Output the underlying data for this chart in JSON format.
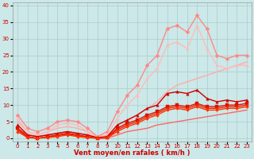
{
  "xlabel": "Vent moyen/en rafales ( km/h )",
  "xlim": [
    -0.5,
    23.5
  ],
  "ylim": [
    -1,
    41
  ],
  "yticks": [
    0,
    5,
    10,
    15,
    20,
    25,
    30,
    35,
    40
  ],
  "xticks": [
    0,
    1,
    2,
    3,
    4,
    5,
    6,
    7,
    8,
    9,
    10,
    11,
    12,
    13,
    14,
    15,
    16,
    17,
    18,
    19,
    20,
    21,
    22,
    23
  ],
  "background_color": "#cce8e8",
  "grid_color": "#aacccc",
  "series": [
    {
      "x": [
        0,
        1,
        2,
        3,
        4,
        5,
        6,
        7,
        8,
        9,
        10,
        11,
        12,
        13,
        14,
        15,
        16,
        17,
        18,
        19,
        20,
        21,
        22,
        23
      ],
      "y": [
        3,
        1,
        0.5,
        1,
        1.5,
        2,
        1.5,
        1,
        0,
        0,
        1,
        2,
        2.5,
        3,
        4,
        4.5,
        5,
        5.5,
        6,
        6.5,
        7,
        7.5,
        8,
        8.5
      ],
      "color": "#ff6666",
      "marker": null,
      "lw": 1.0,
      "ms": 0
    },
    {
      "x": [
        0,
        1,
        2,
        3,
        4,
        5,
        6,
        7,
        8,
        9,
        10,
        11,
        12,
        13,
        14,
        15,
        16,
        17,
        18,
        19,
        20,
        21,
        22,
        23
      ],
      "y": [
        5,
        2,
        1,
        2,
        3,
        3.5,
        3,
        2,
        0.5,
        1,
        3,
        5,
        7,
        9,
        11,
        14,
        16,
        17,
        18,
        19,
        20,
        21,
        22,
        23
      ],
      "color": "#ffaaaa",
      "marker": null,
      "lw": 1.0,
      "ms": 0
    },
    {
      "x": [
        0,
        1,
        2,
        3,
        4,
        5,
        6,
        7,
        8,
        9,
        10,
        11,
        12,
        13,
        14,
        15,
        16,
        17,
        18,
        19,
        20,
        21,
        22,
        23
      ],
      "y": [
        7,
        3,
        2,
        3,
        5,
        5.5,
        5,
        3,
        0.5,
        2,
        8,
        13,
        16,
        22,
        25,
        33,
        34,
        32,
        37,
        33,
        25,
        24,
        25,
        25
      ],
      "color": "#ff8888",
      "marker": "D",
      "lw": 1.0,
      "ms": 2.5
    },
    {
      "x": [
        0,
        1,
        2,
        3,
        4,
        5,
        6,
        7,
        8,
        9,
        10,
        11,
        12,
        13,
        14,
        15,
        16,
        17,
        18,
        19,
        20,
        21,
        22,
        23
      ],
      "y": [
        6,
        2,
        1,
        2,
        4,
        4.5,
        4,
        2,
        0.3,
        1,
        6,
        10,
        13,
        18,
        21,
        28,
        29,
        27,
        34,
        27,
        22,
        21,
        22,
        22
      ],
      "color": "#ffbbbb",
      "marker": "^",
      "lw": 1.0,
      "ms": 2.5
    },
    {
      "x": [
        0,
        1,
        2,
        3,
        4,
        5,
        6,
        7,
        8,
        9,
        10,
        11,
        12,
        13,
        14,
        15,
        16,
        17,
        18,
        19,
        20,
        21,
        22,
        23
      ],
      "y": [
        4,
        1,
        0.5,
        1,
        1.5,
        2,
        1.5,
        1,
        0.2,
        0.5,
        4,
        5.5,
        7,
        9,
        10,
        13.5,
        14,
        13.5,
        14.5,
        12,
        11,
        11.5,
        11,
        11.5
      ],
      "color": "#cc0000",
      "marker": "^",
      "lw": 1.0,
      "ms": 2.5
    },
    {
      "x": [
        0,
        1,
        2,
        3,
        4,
        5,
        6,
        7,
        8,
        9,
        10,
        11,
        12,
        13,
        14,
        15,
        16,
        17,
        18,
        19,
        20,
        21,
        22,
        23
      ],
      "y": [
        3,
        0.5,
        0,
        0.5,
        1,
        1.5,
        1,
        0.5,
        0,
        0.3,
        3,
        4.5,
        5.5,
        7,
        8,
        9.5,
        10,
        9.5,
        10.5,
        9.5,
        9.5,
        10,
        10,
        10.5
      ],
      "color": "#dd1100",
      "marker": "s",
      "lw": 1.0,
      "ms": 2.5
    },
    {
      "x": [
        0,
        1,
        2,
        3,
        4,
        5,
        6,
        7,
        8,
        9,
        10,
        11,
        12,
        13,
        14,
        15,
        16,
        17,
        18,
        19,
        20,
        21,
        22,
        23
      ],
      "y": [
        2.5,
        0.3,
        0,
        0.3,
        0.8,
        1.2,
        0.8,
        0.3,
        0,
        0.2,
        2.5,
        4,
        5,
        6.5,
        7.5,
        9,
        9.5,
        9,
        10,
        9,
        9,
        9.5,
        9.5,
        10
      ],
      "color": "#ee2200",
      "marker": "o",
      "lw": 1.0,
      "ms": 2.0
    },
    {
      "x": [
        0,
        1,
        2,
        3,
        4,
        5,
        6,
        7,
        8,
        9,
        10,
        11,
        12,
        13,
        14,
        15,
        16,
        17,
        18,
        19,
        20,
        21,
        22,
        23
      ],
      "y": [
        2,
        0.2,
        0,
        0.2,
        0.5,
        1,
        0.5,
        0.2,
        0,
        0.1,
        2,
        3.5,
        4.5,
        6,
        7,
        8.5,
        9,
        8.5,
        9.5,
        8.5,
        8.5,
        9,
        9,
        9.5
      ],
      "color": "#ff3300",
      "marker": "D",
      "lw": 1.0,
      "ms": 2.0
    }
  ]
}
